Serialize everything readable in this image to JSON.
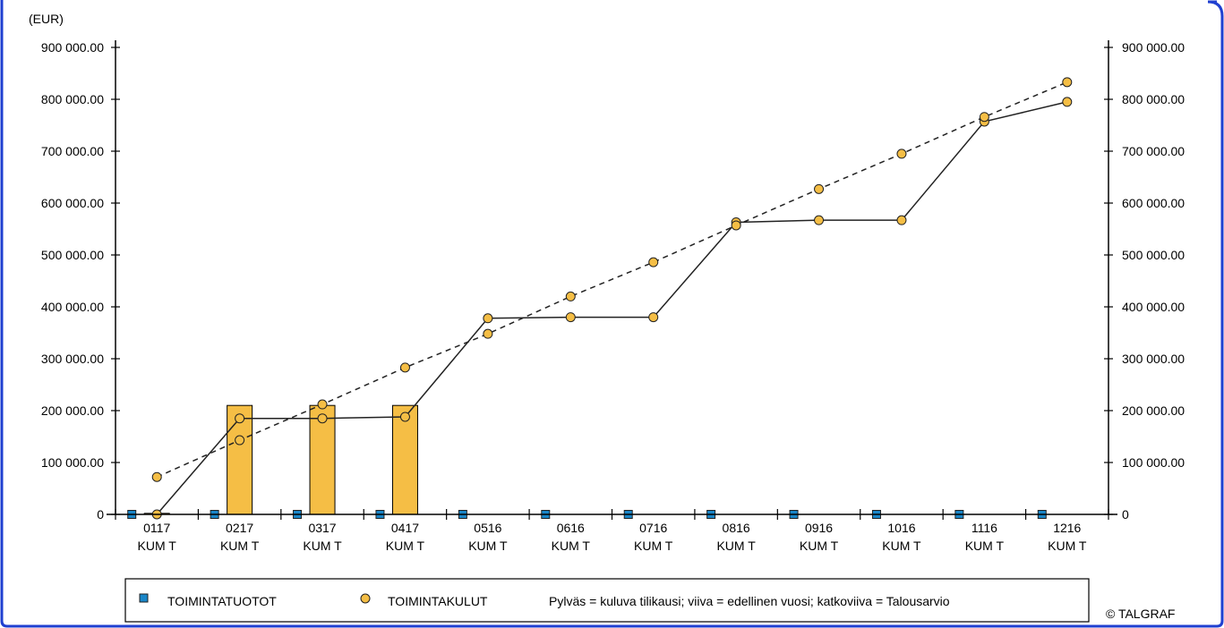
{
  "chart_data": {
    "type": "bar",
    "unit_label": "(EUR)",
    "categories": [
      [
        "0117",
        "KUM T"
      ],
      [
        "0217",
        "KUM T"
      ],
      [
        "0317",
        "KUM T"
      ],
      [
        "0417",
        "KUM T"
      ],
      [
        "0516",
        "KUM T"
      ],
      [
        "0616",
        "KUM T"
      ],
      [
        "0716",
        "KUM T"
      ],
      [
        "0816",
        "KUM T"
      ],
      [
        "0916",
        "KUM T"
      ],
      [
        "1016",
        "KUM T"
      ],
      [
        "1116",
        "KUM T"
      ],
      [
        "1216",
        "KUM T"
      ]
    ],
    "ylim": [
      0,
      900000
    ],
    "yticks": [
      0,
      100000,
      200000,
      300000,
      400000,
      500000,
      600000,
      700000,
      800000,
      900000
    ],
    "ytick_labels": [
      "0",
      "100 000.00",
      "200 000.00",
      "300 000.00",
      "400 000.00",
      "500 000.00",
      "600 000.00",
      "700 000.00",
      "800 000.00",
      "900 000.00"
    ],
    "bars_current": [
      2000,
      210000,
      210000,
      210000,
      null,
      null,
      null,
      null,
      null,
      null,
      null,
      null
    ],
    "line_previous": [
      0,
      185000,
      185000,
      188000,
      378000,
      380000,
      380000,
      563000,
      567000,
      567000,
      757000,
      795000
    ],
    "dashed_budget": [
      72000,
      143000,
      212000,
      283000,
      348000,
      420000,
      486000,
      557000,
      627000,
      695000,
      766000,
      833000
    ],
    "income_markers": [
      0,
      0,
      0,
      0,
      0,
      0,
      0,
      0,
      0,
      0,
      0,
      0
    ],
    "legend": {
      "income": "TOIMINTATUOTOT",
      "expenses": "TOIMINTAKULUT",
      "note": "Pylväs = kuluva tilikausi; viiva = edellinen vuosi; katkoviiva = Talousarvio"
    },
    "copyright": "© TALGRAF",
    "colors": {
      "bar": "#F5BE45",
      "marker_income": "#1A86C8",
      "frame": "#1F3FD0"
    }
  }
}
